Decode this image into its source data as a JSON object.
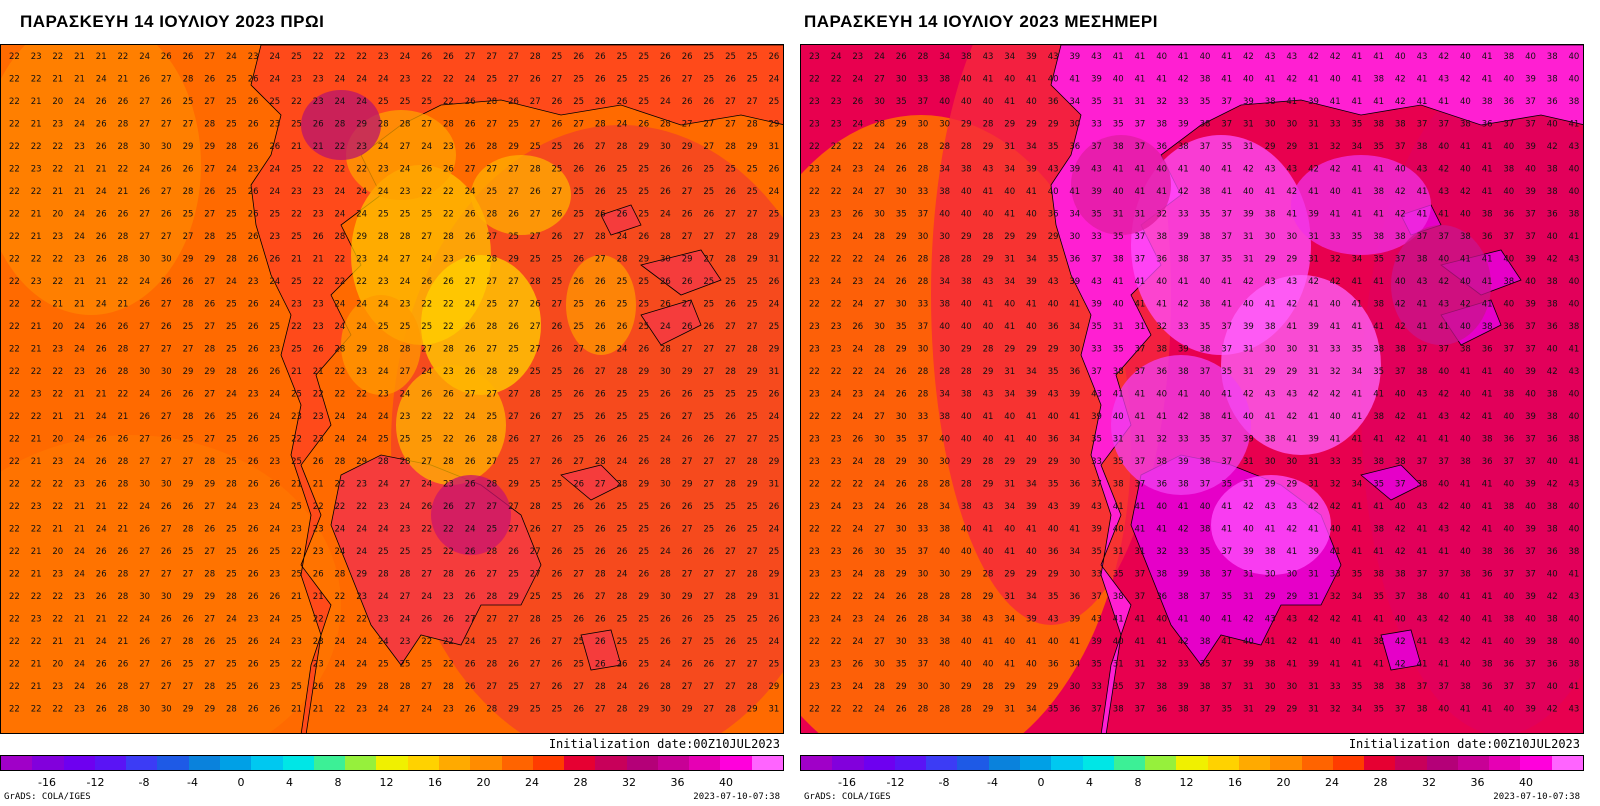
{
  "panels": [
    {
      "title": "ΠΑΡΑΣΚΕΥΗ 14 ΙΟΥΛΙΟΥ 2023 ΠΡΩΙ",
      "init_label": "Initialization date:00Z10JUL2023",
      "grads_label": "GrADS: COLA/IGES",
      "timestamp": "2023-07-10-07:38",
      "field_base_color": "#ff6a00"
    },
    {
      "title": "ΠΑΡΑΣΚΕΥΗ 14 ΙΟΥΛΙΟΥ 2023 ΜΕΣΗΜΕΡΙ",
      "init_label": "Initialization date:00Z10JUL2023",
      "grads_label": "GrADS: COLA/IGES",
      "timestamp": "2023-07-10-07:38",
      "field_base_color": "#e8004f"
    }
  ],
  "colorbar": {
    "colors": [
      "#a000c8",
      "#8200dc",
      "#6e00f0",
      "#5a14f5",
      "#3c3cf5",
      "#1e5ae6",
      "#0a82dc",
      "#00a0e6",
      "#00c8f0",
      "#00e6e6",
      "#3cf096",
      "#96f03c",
      "#f0f000",
      "#ffd200",
      "#ffaa00",
      "#ff8c00",
      "#ff6400",
      "#ff3c00",
      "#e60032",
      "#c8005a",
      "#b40078",
      "#c80096",
      "#e600b4",
      "#ff00dc",
      "#ff64ff"
    ],
    "ticks": [
      "-16",
      "-12",
      "-8",
      "-4",
      "0",
      "4",
      "8",
      "12",
      "16",
      "20",
      "24",
      "28",
      "32",
      "36",
      "40"
    ]
  },
  "morning_rows": [
    [
      "22",
      "23",
      "22",
      "21",
      "21",
      "22",
      "24",
      "26",
      "26",
      "27",
      "24",
      "23",
      "24",
      "25",
      "22",
      "22",
      "22",
      "23",
      "24",
      "26",
      "26",
      "27",
      "27",
      "27",
      "28",
      "25",
      "26",
      "26",
      "25",
      "25",
      "26",
      "26",
      "25",
      "25",
      "25",
      "26"
    ],
    [
      "22",
      "22",
      "21",
      "21",
      "24",
      "21",
      "26",
      "27",
      "28",
      "26",
      "25",
      "26",
      "24",
      "23",
      "23",
      "24",
      "24",
      "24",
      "23",
      "22",
      "22",
      "24",
      "25",
      "27",
      "26",
      "27",
      "25",
      "26",
      "25",
      "25",
      "26",
      "27",
      "25",
      "26",
      "25",
      "24"
    ],
    [
      "22",
      "21",
      "20",
      "24",
      "26",
      "26",
      "27",
      "26",
      "25",
      "27",
      "25",
      "26",
      "25",
      "22",
      "23",
      "24",
      "24",
      "25",
      "25",
      "25",
      "22",
      "26",
      "28",
      "26",
      "27",
      "26",
      "25",
      "26",
      "26",
      "25",
      "24",
      "26",
      "26",
      "27",
      "27",
      "25"
    ],
    [
      "22",
      "21",
      "23",
      "24",
      "26",
      "28",
      "27",
      "27",
      "27",
      "28",
      "25",
      "26",
      "23",
      "25",
      "26",
      "28",
      "29",
      "28",
      "28",
      "27",
      "28",
      "26",
      "27",
      "25",
      "27",
      "26",
      "27",
      "28",
      "24",
      "26",
      "28",
      "27",
      "27",
      "27",
      "28",
      "29"
    ],
    [
      "22",
      "22",
      "22",
      "23",
      "26",
      "28",
      "30",
      "30",
      "29",
      "29",
      "28",
      "26",
      "26",
      "21",
      "21",
      "22",
      "23",
      "24",
      "27",
      "24",
      "23",
      "26",
      "28",
      "29",
      "25",
      "25",
      "26",
      "27",
      "28",
      "29",
      "30",
      "29",
      "27",
      "28",
      "29",
      "31"
    ]
  ],
  "noon_rows": [
    [
      "23",
      "24",
      "23",
      "24",
      "26",
      "28",
      "34",
      "38",
      "43",
      "34",
      "39",
      "43",
      "39",
      "43",
      "41",
      "41",
      "40",
      "41",
      "40",
      "41",
      "42",
      "43",
      "43",
      "42",
      "42",
      "41",
      "41",
      "40",
      "43",
      "42",
      "40",
      "41",
      "38",
      "40",
      "38",
      "40"
    ],
    [
      "22",
      "22",
      "24",
      "27",
      "30",
      "33",
      "38",
      "40",
      "41",
      "40",
      "41",
      "40",
      "41",
      "39",
      "40",
      "41",
      "41",
      "42",
      "38",
      "41",
      "40",
      "41",
      "42",
      "41",
      "40",
      "41",
      "38",
      "42",
      "41",
      "43",
      "42",
      "41",
      "40",
      "39",
      "38",
      "40"
    ],
    [
      "23",
      "23",
      "26",
      "30",
      "35",
      "37",
      "40",
      "40",
      "40",
      "41",
      "40",
      "36",
      "34",
      "35",
      "31",
      "31",
      "32",
      "33",
      "35",
      "37",
      "39",
      "38",
      "41",
      "39",
      "41",
      "41",
      "41",
      "42",
      "41",
      "41",
      "40",
      "38",
      "36",
      "37",
      "36",
      "38"
    ],
    [
      "23",
      "23",
      "24",
      "28",
      "29",
      "30",
      "30",
      "29",
      "28",
      "29",
      "29",
      "29",
      "30",
      "33",
      "35",
      "37",
      "38",
      "39",
      "38",
      "37",
      "31",
      "30",
      "30",
      "31",
      "33",
      "35",
      "38",
      "38",
      "37",
      "37",
      "38",
      "36",
      "37",
      "37",
      "40",
      "41"
    ],
    [
      "22",
      "22",
      "22",
      "24",
      "26",
      "28",
      "28",
      "28",
      "29",
      "31",
      "34",
      "35",
      "36",
      "37",
      "38",
      "37",
      "36",
      "38",
      "37",
      "35",
      "31",
      "29",
      "29",
      "31",
      "32",
      "34",
      "35",
      "37",
      "38",
      "40",
      "41",
      "41",
      "40",
      "39",
      "42",
      "43"
    ]
  ]
}
